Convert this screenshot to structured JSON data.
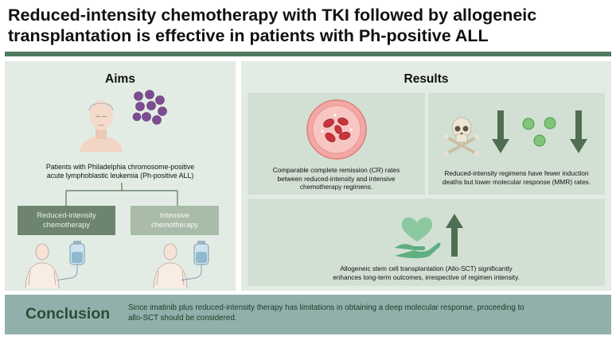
{
  "header": {
    "title_line1": "Reduced-intensity chemotherapy with TKI followed by allogeneic",
    "title_line2": "transplantation is effective in patients with Ph-positive ALL"
  },
  "aims": {
    "heading": "Aims",
    "patients_line1": "Patients with Philadelphia chromosome-positive",
    "patients_line2": "acute lymphoblastic leukemia (Ph-positive ALL)",
    "regimens": [
      {
        "line1": "Reduced-intensity",
        "line2": "chemotherapy"
      },
      {
        "line1": "Intensive",
        "line2": "chemotherapy"
      }
    ]
  },
  "results": {
    "heading": "Results",
    "cr_line1": "Comparable complete remission (CR) rates",
    "cr_line2": "between reduced-intensity and intensive",
    "cr_line3": "chemotherapy regimens.",
    "mmr_line1": "Reduced-intensity regimens have fewer induction",
    "mmr_line2": "deaths but lower molecular response (MMR) rates.",
    "sct_line1": "Allogeneic stem cell transplantation (Allo-SCT) significantly",
    "sct_line2": "enhances long-term outcomes, irrespective of regimen intensity."
  },
  "conclusion": {
    "heading": "Conclusion",
    "line1": "Since imatinib plus reduced-intensity therapy has limitations in obtaining a deep molecular response, proceeding to",
    "line2": "allo-SCT should be considered."
  },
  "colors": {
    "accent_bar": "#4c7a5e",
    "panel_bg": "#e3ece4",
    "card_bg": "#d2e0d4",
    "regimen_dark": "#6d8570",
    "regimen_light": "#a9bba9",
    "arrow": "#4f6e52",
    "conclusion_bg": "#92b0ab",
    "conclusion_text": "#2d4b34"
  },
  "icons": {
    "patient": "patient-head-icon",
    "cells": "purple-cells-icon",
    "iv_bag": "iv-bag-icon",
    "blood_vessel": "blood-cells-vessel-icon",
    "skull": "skull-crossbones-icon",
    "arrow_down": "arrow-down-icon",
    "arrow_up": "arrow-up-icon",
    "heart_hand": "heart-in-hand-icon",
    "green_dots": "green-molecules-icon"
  }
}
